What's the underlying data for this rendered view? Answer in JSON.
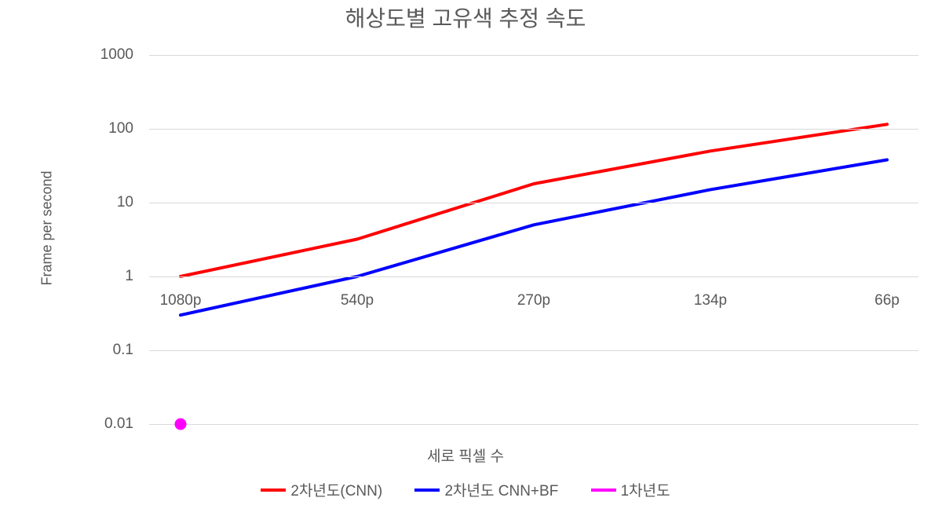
{
  "chart": {
    "type": "line",
    "title": "해상도별 고유색 추정 속도",
    "title_fontsize": 28,
    "title_color": "#595959",
    "x_axis_label": "세로 픽셀 수",
    "y_axis_label": "Frame per second",
    "axis_label_fontsize": 18,
    "axis_label_color": "#595959",
    "background_color": "#ffffff",
    "grid_color": "#d9d9d9",
    "y_scale": "log",
    "y_min": 0.01,
    "y_max": 1000,
    "y_ticks": [
      0.01,
      0.1,
      1,
      10,
      100,
      1000
    ],
    "y_tick_labels": [
      "0.01",
      "0.1",
      "1",
      "10",
      "100",
      "1000"
    ],
    "x_categories": [
      "1080p",
      "540p",
      "270p",
      "134p",
      "66p"
    ],
    "x_tick_fontsize": 19,
    "x_tick_color": "#595959",
    "line_width": 4,
    "series": [
      {
        "name": "2차년도(CNN)",
        "color": "#ff0000",
        "values": [
          1.0,
          3.2,
          18,
          50,
          115
        ]
      },
      {
        "name": "2차년도 CNN+BF",
        "color": "#0000ff",
        "values": [
          0.3,
          1.0,
          5.0,
          15,
          38
        ]
      },
      {
        "name": "1차년도",
        "color": "#ff00ff",
        "single_point": true,
        "point_size": 15,
        "values": [
          0.01,
          null,
          null,
          null,
          null
        ]
      }
    ],
    "legend": {
      "position": "bottom",
      "fontsize": 19,
      "color": "#595959",
      "items": [
        {
          "label": "2차년도(CNN)",
          "color": "#ff0000"
        },
        {
          "label": "2차년도 CNN+BF",
          "color": "#0000ff"
        },
        {
          "label": "1차년도",
          "color": "#ff00ff"
        }
      ]
    }
  }
}
